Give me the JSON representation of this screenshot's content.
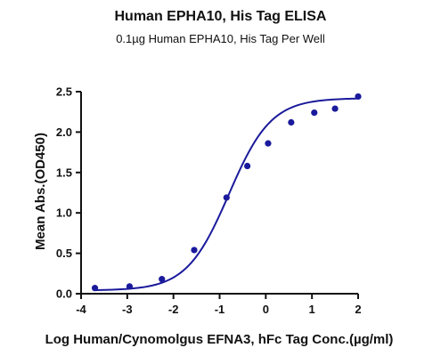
{
  "chart_data": {
    "type": "scatter",
    "title": "Human EPHA10, His Tag ELISA",
    "subtitle": "0.1µg Human EPHA10, His Tag Per Well",
    "xlabel": "Log Human/Cynomolgus EFNA3, hFc Tag Conc.(µg/ml)",
    "ylabel": "Mean Abs.(OD450)",
    "xlim": [
      -4,
      2
    ],
    "ylim": [
      0,
      2.5
    ],
    "xticks": [
      "-4",
      "-3",
      "-2",
      "-1",
      "0",
      "1",
      "2"
    ],
    "yticks": [
      "0.0",
      "0.5",
      "1.0",
      "1.5",
      "2.0",
      "2.5"
    ],
    "grid": false,
    "series": [
      {
        "points": [
          {
            "x": -3.7,
            "y": 0.07
          },
          {
            "x": -2.95,
            "y": 0.09
          },
          {
            "x": -2.25,
            "y": 0.18
          },
          {
            "x": -1.55,
            "y": 0.54
          },
          {
            "x": -0.85,
            "y": 1.19
          },
          {
            "x": -0.4,
            "y": 1.58
          },
          {
            "x": 0.05,
            "y": 1.86
          },
          {
            "x": 0.55,
            "y": 2.12
          },
          {
            "x": 1.05,
            "y": 2.24
          },
          {
            "x": 1.5,
            "y": 2.29
          },
          {
            "x": 2.0,
            "y": 2.44
          }
        ],
        "fit": {
          "bottom": 0.04,
          "top": 2.42,
          "logEC50": -0.8,
          "hill": 0.95
        }
      }
    ],
    "colors": {
      "series": "#1a1a9c",
      "axis": "#111111"
    }
  }
}
